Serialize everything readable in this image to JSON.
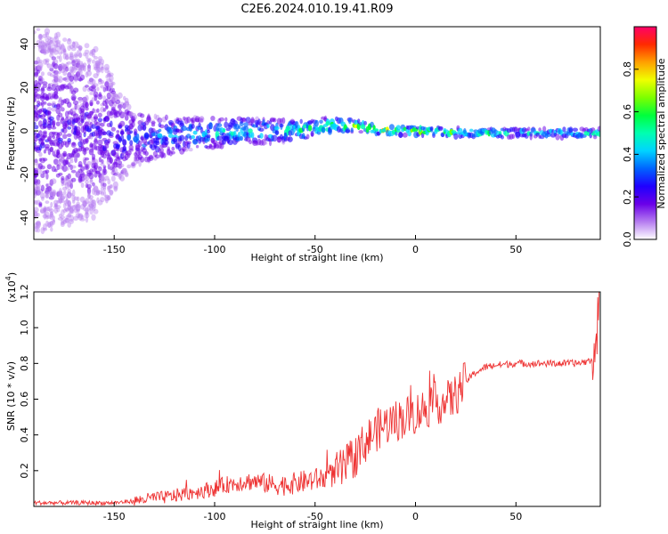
{
  "title": "C2E6.2024.010.19.41.R09",
  "chart_data": [
    {
      "type": "heatmap",
      "xlabel": "Height of straight line (km)",
      "ylabel": "Frequency (Hz)",
      "xlim": [
        -190,
        92
      ],
      "ylim": [
        -50,
        48
      ],
      "xticks": [
        -150,
        -100,
        -50,
        0,
        50
      ],
      "yticks": [
        -40,
        -20,
        0,
        20,
        40
      ],
      "colorbar": {
        "label": "Normalized spectral amplitude",
        "range": [
          0,
          1
        ],
        "ticks": [
          "0.0",
          "0.2",
          "0.4",
          "0.6",
          "0.8"
        ],
        "tick_values": [
          0,
          0.2,
          0.4,
          0.6,
          0.8
        ],
        "colormap": [
          "#ffffff",
          "#b57cf0",
          "#6a00e8",
          "#1f00ff",
          "#0064ff",
          "#00d4ff",
          "#00ffb0",
          "#00ff3c",
          "#7dff00",
          "#f0ff00",
          "#ffa000",
          "#ff2a00",
          "#ff0068"
        ]
      },
      "bands": [
        {
          "x": -190,
          "center": 0,
          "half_width": 48,
          "intensity": 0.22
        },
        {
          "x": -160,
          "center": 0,
          "half_width": 40,
          "intensity": 0.2
        },
        {
          "x": -140,
          "center": -4,
          "half_width": 12,
          "intensity": 0.3
        },
        {
          "x": -120,
          "center": -2,
          "half_width": 8,
          "intensity": 0.38
        },
        {
          "x": -100,
          "center": -1,
          "half_width": 7,
          "intensity": 0.42
        },
        {
          "x": -80,
          "center": 0,
          "half_width": 6,
          "intensity": 0.45
        },
        {
          "x": -60,
          "center": 0,
          "half_width": 5,
          "intensity": 0.5
        },
        {
          "x": -40,
          "center": 3,
          "half_width": 3.5,
          "intensity": 0.6
        },
        {
          "x": -28,
          "center": 2,
          "half_width": 2.5,
          "intensity": 0.7
        },
        {
          "x": -15,
          "center": 0,
          "half_width": 2,
          "intensity": 0.78
        },
        {
          "x": 0,
          "center": 0,
          "half_width": 2,
          "intensity": 0.7
        },
        {
          "x": 30,
          "center": -1,
          "half_width": 2,
          "intensity": 0.55
        },
        {
          "x": 60,
          "center": -1,
          "half_width": 2,
          "intensity": 0.5
        },
        {
          "x": 90,
          "center": -1,
          "half_width": 2,
          "intensity": 0.5
        }
      ]
    },
    {
      "type": "line",
      "xlabel": "Height of straight line (km)",
      "ylabel": "SNR (10 * v/v)",
      "y_multiplier": "(x10",
      "y_multiplier_exp": "4",
      "y_multiplier_close": ")",
      "xlim": [
        -190,
        92
      ],
      "ylim": [
        0,
        1.2
      ],
      "xticks": [
        -150,
        -100,
        -50,
        0,
        50
      ],
      "yticks": [
        0.2,
        0.4,
        0.6,
        0.8,
        1.0,
        1.2
      ],
      "ytick_labels": [
        "0.2",
        "0.4",
        "0.6",
        "0.8",
        "1.0",
        "1.2"
      ],
      "series": [
        {
          "color": "#ee3333",
          "x": [
            -190,
            -180,
            -170,
            -160,
            -150,
            -140,
            -135,
            -130,
            -125,
            -120,
            -115,
            -110,
            -105,
            -100,
            -95,
            -90,
            -85,
            -80,
            -75,
            -70,
            -65,
            -60,
            -55,
            -50,
            -45,
            -40,
            -35,
            -30,
            -25,
            -20,
            -15,
            -10,
            -5,
            0,
            5,
            10,
            15,
            20,
            25,
            30,
            35,
            40,
            50,
            60,
            70,
            80,
            85,
            88,
            90,
            91
          ],
          "y": [
            0.02,
            0.02,
            0.02,
            0.02,
            0.02,
            0.03,
            0.04,
            0.05,
            0.05,
            0.06,
            0.07,
            0.08,
            0.09,
            0.1,
            0.12,
            0.13,
            0.14,
            0.14,
            0.13,
            0.12,
            0.12,
            0.13,
            0.14,
            0.15,
            0.16,
            0.18,
            0.22,
            0.28,
            0.36,
            0.42,
            0.46,
            0.48,
            0.5,
            0.52,
            0.55,
            0.58,
            0.58,
            0.62,
            0.7,
            0.75,
            0.78,
            0.79,
            0.8,
            0.8,
            0.8,
            0.8,
            0.81,
            0.82,
            0.85,
            1.15
          ]
        }
      ]
    }
  ]
}
